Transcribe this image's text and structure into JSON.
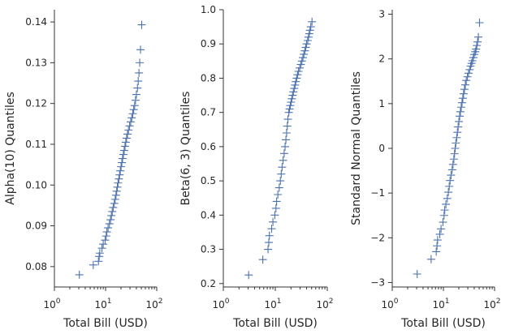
{
  "chart_data": [
    {
      "type": "scatter",
      "xlabel": "Total Bill (USD)",
      "ylabel": "Alpha(10) Quantiles",
      "xscale": "log",
      "xlim": [
        1,
        100
      ],
      "ylim": [
        0.075,
        0.143
      ],
      "xticks": [
        1,
        10,
        100
      ],
      "xtick_labels": [
        {
          "base": "10",
          "exp": "0"
        },
        {
          "base": "10",
          "exp": "1"
        },
        {
          "base": "10",
          "exp": "2"
        }
      ],
      "yticks": [
        0.08,
        0.09,
        0.1,
        0.11,
        0.12,
        0.13,
        0.14
      ],
      "ytick_labels": [
        "0.08",
        "0.09",
        "0.10",
        "0.11",
        "0.12",
        "0.13",
        "0.14"
      ],
      "grid": false,
      "marker": "+",
      "color": "#4c72b0",
      "points": [
        [
          3.07,
          0.078
        ],
        [
          5.75,
          0.0804
        ],
        [
          7.25,
          0.0813
        ],
        [
          7.5,
          0.0825
        ],
        [
          7.7,
          0.0833
        ],
        [
          8.5,
          0.0845
        ],
        [
          9.0,
          0.0855
        ],
        [
          9.8,
          0.0865
        ],
        [
          10.3,
          0.0875
        ],
        [
          10.6,
          0.0885
        ],
        [
          11.2,
          0.0895
        ],
        [
          11.9,
          0.0905
        ],
        [
          12.5,
          0.0915
        ],
        [
          13.0,
          0.0925
        ],
        [
          13.5,
          0.0935
        ],
        [
          14.1,
          0.0945
        ],
        [
          14.8,
          0.0955
        ],
        [
          15.4,
          0.0965
        ],
        [
          16.0,
          0.0975
        ],
        [
          16.5,
          0.0985
        ],
        [
          17.0,
          0.0995
        ],
        [
          17.5,
          0.1005
        ],
        [
          18.2,
          0.1015
        ],
        [
          18.8,
          0.1025
        ],
        [
          19.4,
          0.1035
        ],
        [
          20.1,
          0.1045
        ],
        [
          20.8,
          0.1055
        ],
        [
          21.5,
          0.1065
        ],
        [
          22.3,
          0.1075
        ],
        [
          23.1,
          0.1085
        ],
        [
          24.0,
          0.1095
        ],
        [
          24.8,
          0.1105
        ],
        [
          25.8,
          0.1115
        ],
        [
          26.8,
          0.1125
        ],
        [
          28.0,
          0.1135
        ],
        [
          29.5,
          0.1145
        ],
        [
          31.0,
          0.1155
        ],
        [
          32.5,
          0.1165
        ],
        [
          34.0,
          0.1175
        ],
        [
          35.5,
          0.1185
        ],
        [
          37.0,
          0.1195
        ],
        [
          38.5,
          0.1208
        ],
        [
          40.0,
          0.1222
        ],
        [
          42.0,
          0.1238
        ],
        [
          43.5,
          0.1255
        ],
        [
          45.0,
          0.1275
        ],
        [
          46.5,
          0.13
        ],
        [
          48.2,
          0.1332
        ],
        [
          50.8,
          0.1393
        ]
      ]
    },
    {
      "type": "scatter",
      "xlabel": "Total Bill (USD)",
      "ylabel": "Beta(6, 3) Quantiles",
      "xscale": "log",
      "xlim": [
        1,
        100
      ],
      "ylim": [
        0.19,
        1.0
      ],
      "xticks": [
        1,
        10,
        100
      ],
      "xtick_labels": [
        {
          "base": "10",
          "exp": "0"
        },
        {
          "base": "10",
          "exp": "1"
        },
        {
          "base": "10",
          "exp": "2"
        }
      ],
      "yticks": [
        0.2,
        0.3,
        0.4,
        0.5,
        0.6,
        0.7,
        0.8,
        0.9,
        1.0
      ],
      "ytick_labels": [
        "0.2",
        "0.3",
        "0.4",
        "0.5",
        "0.6",
        "0.7",
        "0.8",
        "0.9",
        "1.0"
      ],
      "grid": false,
      "marker": "+",
      "color": "#4c72b0",
      "points": [
        [
          3.07,
          0.225
        ],
        [
          5.75,
          0.27
        ],
        [
          7.25,
          0.3
        ],
        [
          7.5,
          0.32
        ],
        [
          7.7,
          0.34
        ],
        [
          8.5,
          0.36
        ],
        [
          9.0,
          0.38
        ],
        [
          9.8,
          0.4
        ],
        [
          10.3,
          0.42
        ],
        [
          10.6,
          0.44
        ],
        [
          11.2,
          0.46
        ],
        [
          11.9,
          0.48
        ],
        [
          12.5,
          0.5
        ],
        [
          13.0,
          0.52
        ],
        [
          13.5,
          0.54
        ],
        [
          14.1,
          0.56
        ],
        [
          14.8,
          0.58
        ],
        [
          15.4,
          0.6
        ],
        [
          16.0,
          0.62
        ],
        [
          16.5,
          0.64
        ],
        [
          17.0,
          0.66
        ],
        [
          17.5,
          0.68
        ],
        [
          18.2,
          0.7
        ],
        [
          18.8,
          0.71
        ],
        [
          19.4,
          0.72
        ],
        [
          20.1,
          0.73
        ],
        [
          20.8,
          0.74
        ],
        [
          21.5,
          0.75
        ],
        [
          22.3,
          0.76
        ],
        [
          23.1,
          0.77
        ],
        [
          24.0,
          0.78
        ],
        [
          24.8,
          0.79
        ],
        [
          25.8,
          0.8
        ],
        [
          26.8,
          0.81
        ],
        [
          28.0,
          0.82
        ],
        [
          29.5,
          0.83
        ],
        [
          31.0,
          0.84
        ],
        [
          32.5,
          0.85
        ],
        [
          34.0,
          0.86
        ],
        [
          35.5,
          0.87
        ],
        [
          37.0,
          0.88
        ],
        [
          38.5,
          0.89
        ],
        [
          40.0,
          0.9
        ],
        [
          42.0,
          0.91
        ],
        [
          43.5,
          0.92
        ],
        [
          45.0,
          0.93
        ],
        [
          46.5,
          0.94
        ],
        [
          48.2,
          0.95
        ],
        [
          50.8,
          0.965
        ]
      ]
    },
    {
      "type": "scatter",
      "xlabel": "Total Bill (USD)",
      "ylabel": "Standard Normal Quantiles",
      "xscale": "log",
      "xlim": [
        1,
        100
      ],
      "ylim": [
        -3.1,
        3.1
      ],
      "xticks": [
        1,
        10,
        100
      ],
      "xtick_labels": [
        {
          "base": "10",
          "exp": "0"
        },
        {
          "base": "10",
          "exp": "1"
        },
        {
          "base": "10",
          "exp": "2"
        }
      ],
      "yticks": [
        -3,
        -2,
        -1,
        0,
        1,
        2,
        3
      ],
      "ytick_labels": [
        "−3",
        "−2",
        "−1",
        "0",
        "1",
        "2",
        "3"
      ],
      "grid": false,
      "marker": "+",
      "color": "#4c72b0",
      "points": [
        [
          3.07,
          -2.81
        ],
        [
          5.75,
          -2.48
        ],
        [
          7.25,
          -2.31
        ],
        [
          7.5,
          -2.18
        ],
        [
          7.7,
          -2.05
        ],
        [
          8.5,
          -1.92
        ],
        [
          9.0,
          -1.8
        ],
        [
          9.8,
          -1.65
        ],
        [
          10.3,
          -1.5
        ],
        [
          10.6,
          -1.38
        ],
        [
          11.2,
          -1.25
        ],
        [
          11.9,
          -1.12
        ],
        [
          12.5,
          -0.98
        ],
        [
          13.0,
          -0.85
        ],
        [
          13.5,
          -0.72
        ],
        [
          14.1,
          -0.6
        ],
        [
          14.8,
          -0.48
        ],
        [
          15.4,
          -0.36
        ],
        [
          16.0,
          -0.24
        ],
        [
          16.5,
          -0.12
        ],
        [
          17.0,
          0.0
        ],
        [
          17.5,
          0.12
        ],
        [
          18.2,
          0.24
        ],
        [
          18.8,
          0.36
        ],
        [
          19.4,
          0.48
        ],
        [
          20.1,
          0.6
        ],
        [
          20.8,
          0.72
        ],
        [
          21.5,
          0.82
        ],
        [
          22.3,
          0.92
        ],
        [
          23.1,
          1.02
        ],
        [
          24.0,
          1.12
        ],
        [
          24.8,
          1.22
        ],
        [
          25.8,
          1.32
        ],
        [
          26.8,
          1.42
        ],
        [
          28.0,
          1.52
        ],
        [
          29.5,
          1.6
        ],
        [
          31.0,
          1.68
        ],
        [
          32.5,
          1.76
        ],
        [
          34.0,
          1.84
        ],
        [
          35.5,
          1.9
        ],
        [
          37.0,
          1.96
        ],
        [
          38.5,
          2.03
        ],
        [
          40.0,
          2.1
        ],
        [
          42.0,
          2.16
        ],
        [
          43.5,
          2.22
        ],
        [
          45.0,
          2.3
        ],
        [
          46.5,
          2.38
        ],
        [
          48.2,
          2.49
        ],
        [
          50.8,
          2.81
        ]
      ]
    }
  ]
}
